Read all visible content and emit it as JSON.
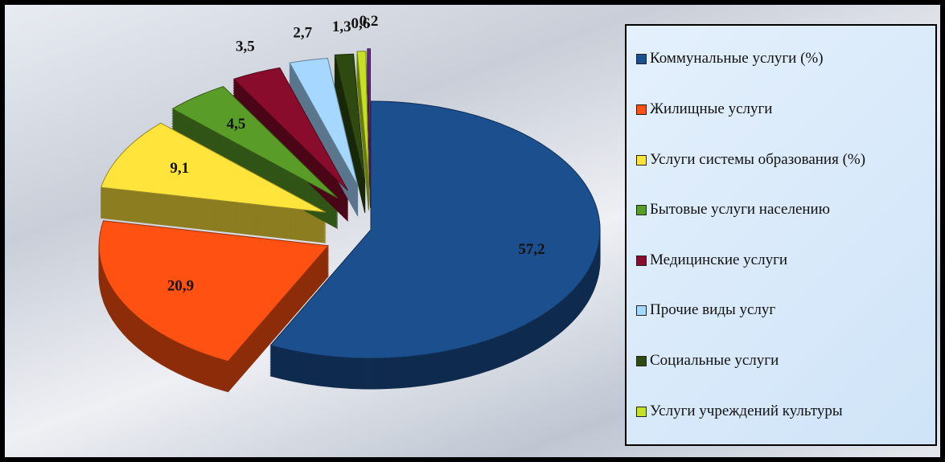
{
  "chart_data": {
    "type": "pie",
    "categories": [
      "Коммунальные услуги (%)",
      "Жилищные услуги",
      "Услуги системы образования (%)",
      "Бытовые услуги населению",
      "Медицинские услуги",
      "Прочие виды услуг",
      "Социальные услуги",
      "Услуги учреждений культуры",
      null
    ],
    "values": [
      57.2,
      20.9,
      9.1,
      4.5,
      3.5,
      2.7,
      1.3,
      0.6,
      0.2
    ],
    "value_labels": [
      "57,2",
      "20,9",
      "9,1",
      "4,5",
      "3,5",
      "2,7",
      "1,3",
      "0,6",
      "0,2"
    ],
    "colors": [
      "#1c4f8e",
      "#ff5212",
      "#ffe43c",
      "#5a9c28",
      "#8a0c2c",
      "#a6d8ff",
      "#2e4a10",
      "#c6e024",
      "#6a2a8a"
    ],
    "legend": "right"
  }
}
